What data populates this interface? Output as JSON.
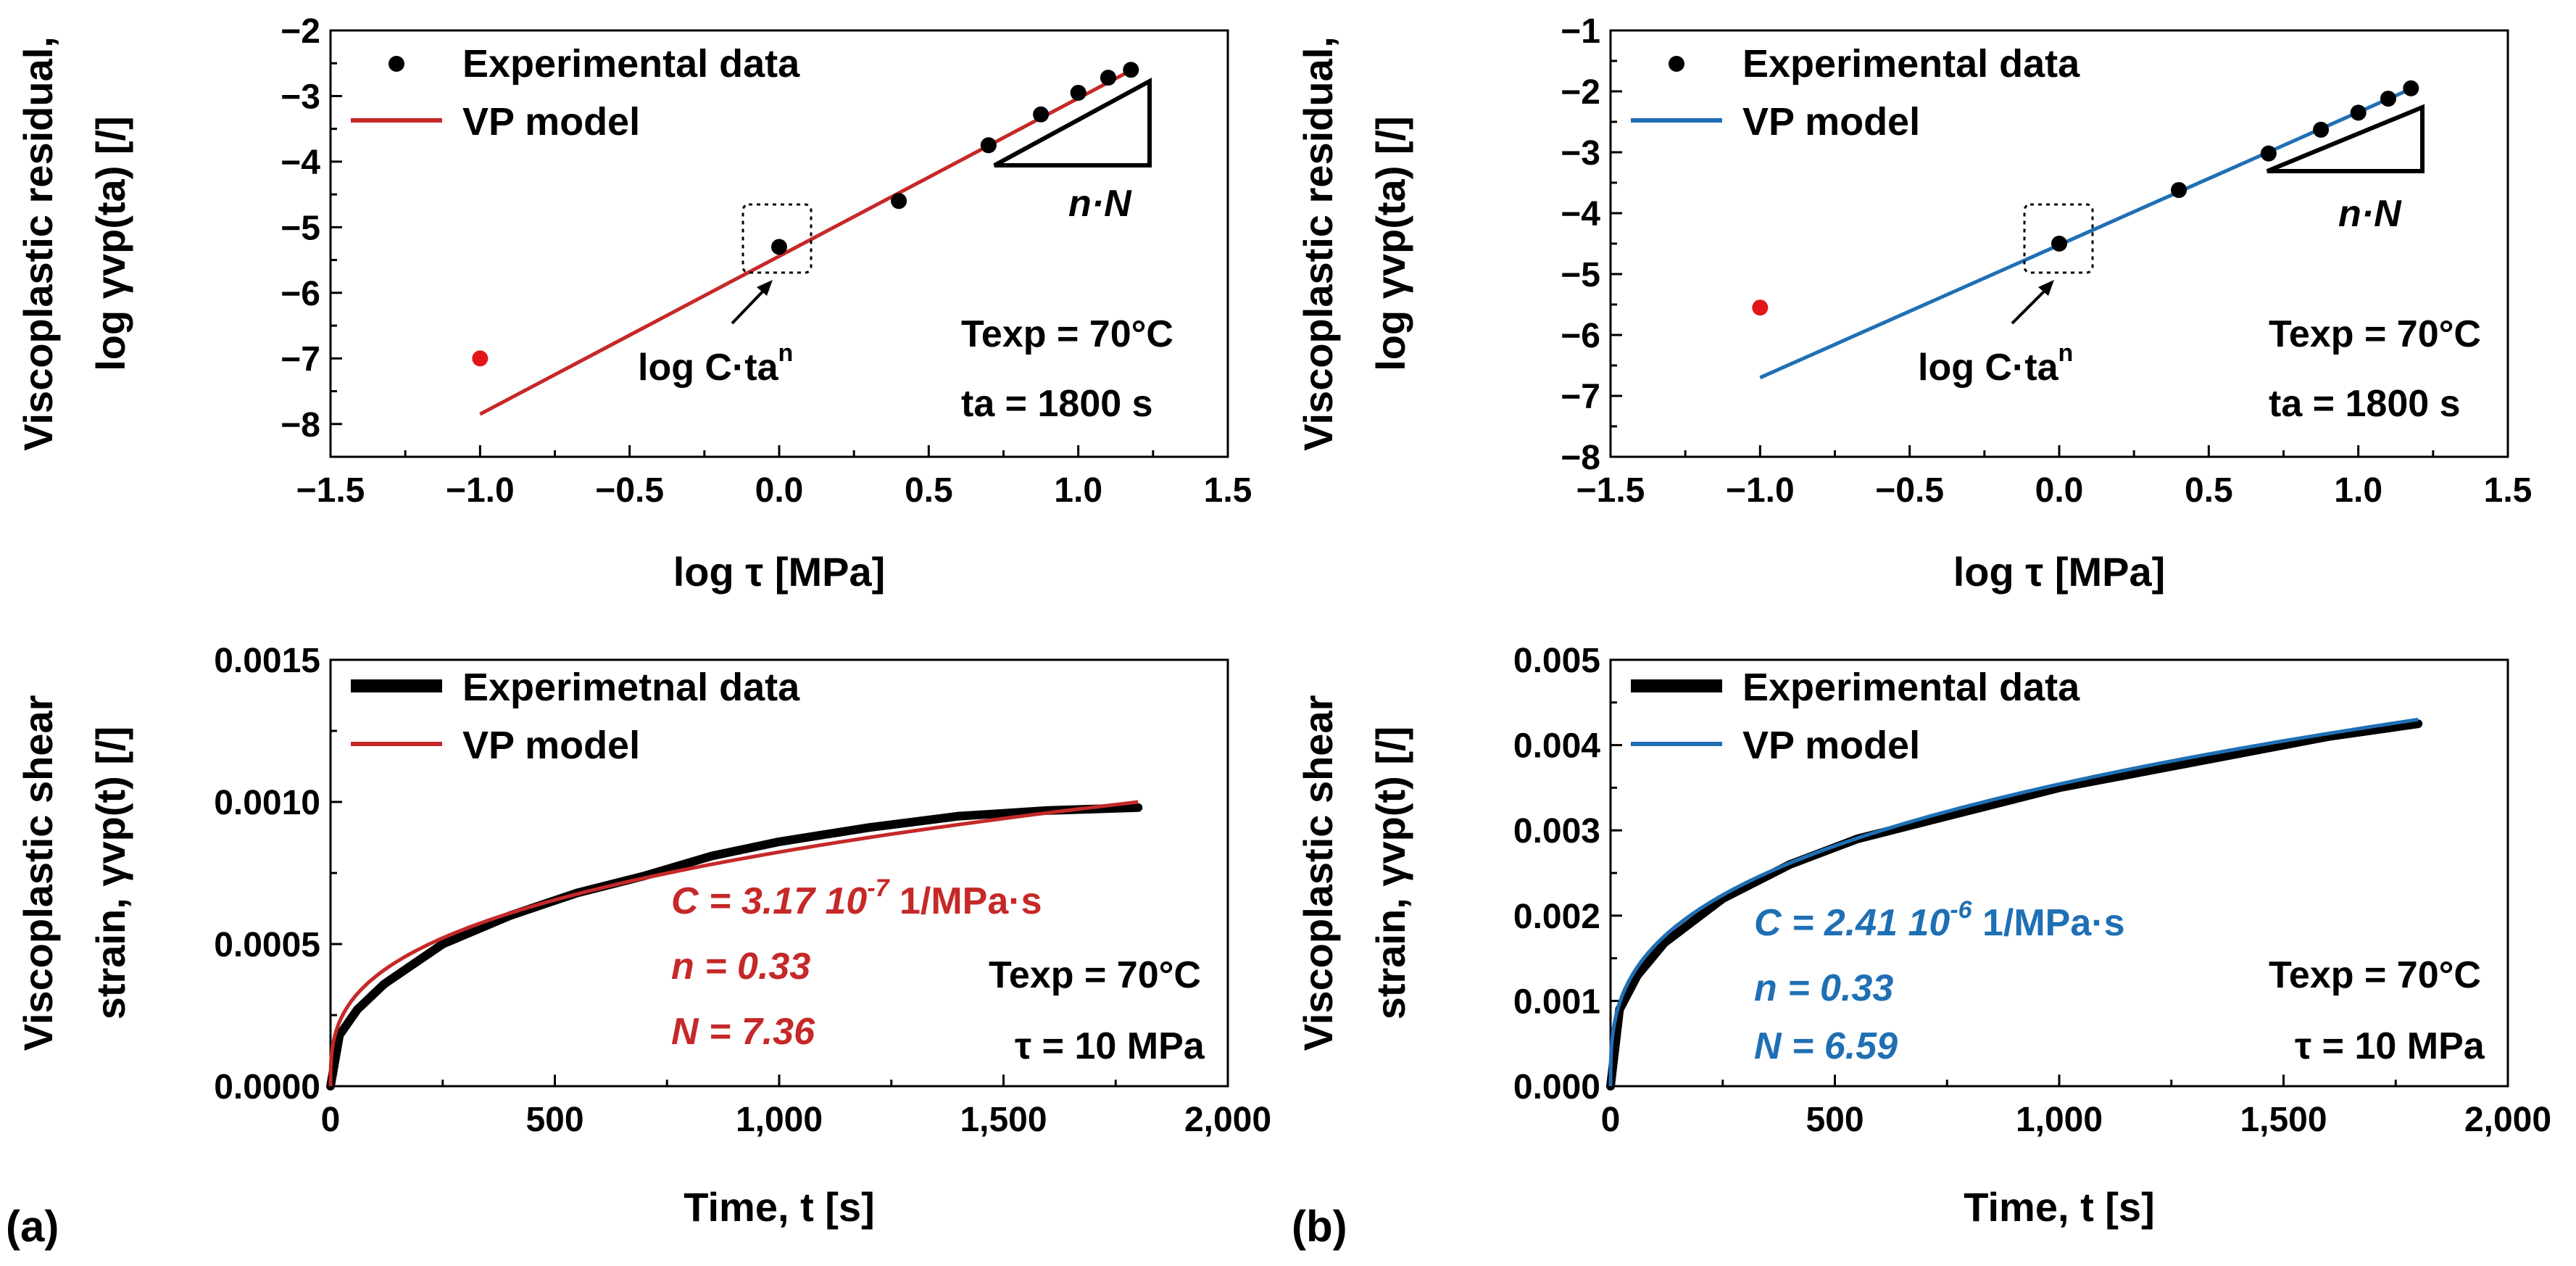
{
  "panel_labels": {
    "a": "(a)",
    "b": "(b)"
  },
  "colors": {
    "red": "#c62828",
    "blue": "#1f6fb4",
    "red_point": "#e3171b",
    "black": "#000000"
  },
  "chart_data": [
    {
      "id": "a_top",
      "type": "scatter",
      "ylabel_line1": "Viscoplastic residual,",
      "ylabel_line2": "log γvp(ta) [/]",
      "xlabel": "log τ [MPa]",
      "xlim": [
        -1.5,
        1.5
      ],
      "ylim": [
        -8.5,
        -2
      ],
      "xticks": [
        -1.5,
        -1.0,
        -0.5,
        0.0,
        0.5,
        1.0,
        1.5
      ],
      "xtick_labels": [
        "−1.5",
        "−1.0",
        "−0.5",
        "0.0",
        "0.5",
        "1.0",
        "1.5"
      ],
      "yticks": [
        -8,
        -7,
        -6,
        -5,
        -4,
        -3,
        -2
      ],
      "ytick_labels": [
        "−8",
        "−7",
        "−6",
        "−5",
        "−4",
        "−3",
        "−2"
      ],
      "legend": [
        "Experimental data",
        "VP model"
      ],
      "model_color": "#c62828",
      "series": [
        {
          "name": "Experimental data",
          "x": [
            0.0,
            0.4,
            0.7,
            0.875,
            1.0,
            1.1,
            1.176
          ],
          "y": [
            -5.3,
            -4.6,
            -3.75,
            -3.28,
            -2.95,
            -2.72,
            -2.6
          ]
        },
        {
          "name": "Excluded point",
          "x": [
            -1.0
          ],
          "y": [
            -7.0
          ]
        },
        {
          "name": "VP model",
          "x": [
            -1.0,
            1.18
          ],
          "y": [
            -7.85,
            -2.6
          ]
        }
      ],
      "annotations": {
        "intercept": "log C·ta",
        "intercept_sup": "n",
        "slope": "n·N",
        "temp_label": "Texp = 70°C",
        "time_label": "ta = 1800 s"
      }
    },
    {
      "id": "b_top",
      "type": "scatter",
      "ylabel_line1": "Viscoplastic residual,",
      "ylabel_line2": "log γvp(ta) [/]",
      "xlabel": "log τ [MPa]",
      "xlim": [
        -1.5,
        1.5
      ],
      "ylim": [
        -8,
        -1
      ],
      "xticks": [
        -1.5,
        -1.0,
        -0.5,
        0.0,
        0.5,
        1.0,
        1.5
      ],
      "xtick_labels": [
        "−1.5",
        "−1.0",
        "−0.5",
        "0.0",
        "0.5",
        "1.0",
        "1.5"
      ],
      "yticks": [
        -8,
        -7,
        -6,
        -5,
        -4,
        -3,
        -2,
        -1
      ],
      "ytick_labels": [
        "−8",
        "−7",
        "−6",
        "−5",
        "−4",
        "−3",
        "−2",
        "−1"
      ],
      "legend": [
        "Experimental data",
        "VP model"
      ],
      "model_color": "#1f6fb4",
      "series": [
        {
          "name": "Experimental data",
          "x": [
            0.0,
            0.4,
            0.7,
            0.875,
            1.0,
            1.1,
            1.176
          ],
          "y": [
            -4.5,
            -3.62,
            -3.02,
            -2.63,
            -2.35,
            -2.12,
            -1.95
          ]
        },
        {
          "name": "Excluded point",
          "x": [
            -1.0
          ],
          "y": [
            -5.55
          ]
        },
        {
          "name": "VP model",
          "x": [
            -1.0,
            1.18
          ],
          "y": [
            -6.7,
            -1.95
          ]
        }
      ],
      "annotations": {
        "intercept": "log C·ta",
        "intercept_sup": "n",
        "slope": "n·N",
        "temp_label": "Texp = 70°C",
        "time_label": "ta = 1800 s"
      }
    },
    {
      "id": "a_bottom",
      "type": "line",
      "ylabel_line1": "Viscoplastic shear",
      "ylabel_line2": "strain, γvp(t) [/]",
      "xlabel": "Time, t [s]",
      "xlim": [
        0,
        2000
      ],
      "ylim": [
        0,
        0.0015
      ],
      "xticks": [
        0,
        500,
        1000,
        1500,
        2000
      ],
      "xtick_labels": [
        "0",
        "500",
        "1,000",
        "1,500",
        "2,000"
      ],
      "yticks": [
        0,
        0.0005,
        0.001,
        0.0015
      ],
      "ytick_labels": [
        "0.0000",
        "0.0005",
        "0.0010",
        "0.0015"
      ],
      "legend": [
        "Experimetnal data",
        "VP model"
      ],
      "model_color": "#c62828",
      "model": {
        "C": 3.17e-07,
        "n": 0.33,
        "N": 7.36,
        "t_end": 1800
      },
      "series": [
        {
          "name": "Experimetnal data",
          "x": [
            0,
            20,
            60,
            120,
            250,
            400,
            550,
            700,
            850,
            1000,
            1200,
            1400,
            1600,
            1800
          ],
          "y": [
            0.0,
            0.00018,
            0.00027,
            0.00036,
            0.0005,
            0.0006,
            0.00068,
            0.00074,
            0.00081,
            0.00086,
            0.00091,
            0.00095,
            0.00097,
            0.00098
          ]
        },
        {
          "name": "VP model",
          "x": [
            0,
            1800
          ],
          "y": [
            0,
            0.001
          ]
        }
      ],
      "annotations": {
        "C_text": "C = 3.17 10",
        "C_exp": "-7",
        "C_unit": " 1/MPa·s",
        "n_text": "n = 0.33",
        "N_text": "N = 7.36",
        "temp_label": "Texp = 70°C",
        "stress_label": "τ = 10 MPa"
      }
    },
    {
      "id": "b_bottom",
      "type": "line",
      "ylabel_line1": "Viscoplastic shear",
      "ylabel_line2": "strain, γvp(t) [/]",
      "xlabel": "Time, t [s]",
      "xlim": [
        0,
        2000
      ],
      "ylim": [
        0,
        0.005
      ],
      "xticks": [
        0,
        500,
        1000,
        1500,
        2000
      ],
      "xtick_labels": [
        "0",
        "500",
        "1,000",
        "1,500",
        "2,000"
      ],
      "yticks": [
        0,
        0.001,
        0.002,
        0.003,
        0.004,
        0.005
      ],
      "ytick_labels": [
        "0.000",
        "0.001",
        "0.002",
        "0.003",
        "0.004",
        "0.005"
      ],
      "legend": [
        "Experimental data",
        "VP model"
      ],
      "model_color": "#1f6fb4",
      "model": {
        "C": 2.41e-06,
        "n": 0.33,
        "N": 6.59,
        "t_end": 1800
      },
      "series": [
        {
          "name": "Experimental data",
          "x": [
            0,
            20,
            60,
            120,
            250,
            400,
            550,
            700,
            850,
            1000,
            1200,
            1400,
            1600,
            1800
          ],
          "y": [
            0.0,
            0.0009,
            0.0013,
            0.00168,
            0.0022,
            0.0026,
            0.0029,
            0.0031,
            0.0033,
            0.0035,
            0.0037,
            0.0039,
            0.0041,
            0.00425
          ]
        },
        {
          "name": "VP model",
          "x": [
            0,
            1800
          ],
          "y": [
            0,
            0.0043
          ]
        }
      ],
      "annotations": {
        "C_text": "C = 2.41 10",
        "C_exp": "-6",
        "C_unit": " 1/MPa·s",
        "n_text": "n = 0.33",
        "N_text": "N = 6.59",
        "temp_label": "Texp = 70°C",
        "stress_label": "τ = 10 MPa"
      }
    }
  ]
}
